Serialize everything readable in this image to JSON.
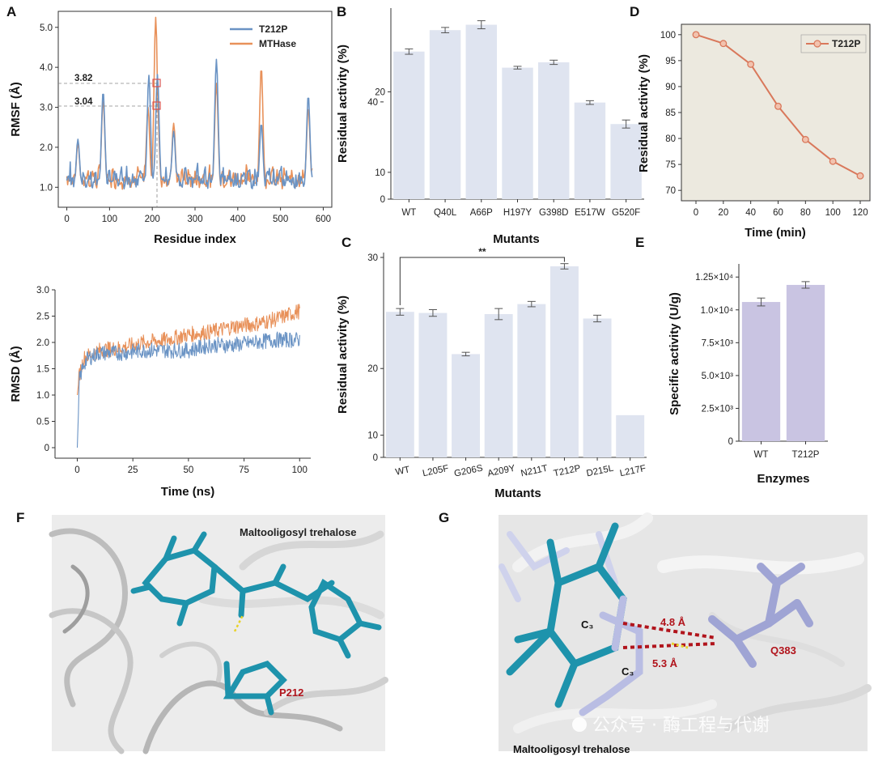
{
  "colors": {
    "t212p": "#6a93c4",
    "mthase": "#e8915a",
    "bar_blue": "#dfe4f0",
    "bar_purple": "#c9c4e2",
    "line_d": "#d9785b",
    "d_bg": "#ece9df",
    "cyan": "#1e93ac",
    "lavender": "#9fa4d4",
    "red_label": "#b1141c"
  },
  "panels": {
    "A": "A",
    "B": "B",
    "C": "C",
    "D": "D",
    "E": "E",
    "F": "F",
    "G": "G"
  },
  "chart_data": [
    {
      "id": "A_rmsf",
      "type": "line",
      "xlabel": "Residue index",
      "ylabel": "RMSF (Å)",
      "xlim": [
        -20,
        620
      ],
      "ylim": [
        0.5,
        5.4
      ],
      "xticks": [
        "0",
        "100",
        "200",
        "300",
        "400",
        "500",
        "600"
      ],
      "yticks": [
        "1.0",
        "2.0",
        "3.0",
        "4.0",
        "5.0"
      ],
      "legend": [
        "T212P",
        "MTHase"
      ],
      "annotations": [
        "3.82",
        "3.04"
      ],
      "marker_x": 212,
      "marker_values": [
        3.82,
        3.04
      ],
      "series": [
        {
          "name": "T212P",
          "peaks": [
            [
              26,
              2.2
            ],
            [
              85,
              3.4
            ],
            [
              192,
              3.8
            ],
            [
              212,
              3.82
            ],
            [
              250,
              2.4
            ],
            [
              350,
              4.2
            ],
            [
              455,
              2.6
            ],
            [
              565,
              3.3
            ]
          ]
        },
        {
          "name": "MTHase",
          "peaks": [
            [
              26,
              2.1
            ],
            [
              85,
              3.2
            ],
            [
              190,
              3.0
            ],
            [
              208,
              5.25
            ],
            [
              212,
              3.04
            ],
            [
              250,
              2.6
            ],
            [
              350,
              3.6
            ],
            [
              455,
              4.0
            ],
            [
              565,
              3.0
            ]
          ]
        }
      ]
    },
    {
      "id": "A_rmsd",
      "type": "line",
      "xlabel": "Time (ns)",
      "ylabel": "RMSD (Å)",
      "xlim": [
        -10,
        105
      ],
      "ylim": [
        -0.2,
        3.0
      ],
      "xticks": [
        "0",
        "25",
        "50",
        "75",
        "100"
      ],
      "yticks": [
        "0",
        "0.5",
        "1.0",
        "1.5",
        "2.0",
        "2.5",
        "3.0"
      ],
      "series": [
        {
          "name": "T212P",
          "x": [
            0,
            1,
            3,
            5,
            10,
            20,
            30,
            40,
            50,
            60,
            70,
            80,
            90,
            100
          ],
          "values": [
            0.0,
            1.3,
            1.6,
            1.7,
            1.8,
            1.8,
            1.85,
            1.85,
            1.85,
            1.95,
            1.95,
            2.0,
            2.05,
            2.05
          ]
        },
        {
          "name": "MTHase",
          "x": [
            0,
            1,
            3,
            5,
            10,
            20,
            30,
            40,
            50,
            60,
            70,
            80,
            90,
            100
          ],
          "values": [
            1.0,
            1.4,
            1.7,
            1.75,
            1.85,
            1.9,
            2.0,
            2.05,
            2.15,
            2.2,
            2.3,
            2.35,
            2.45,
            2.6
          ]
        }
      ]
    },
    {
      "id": "B",
      "type": "bar",
      "xlabel": "Mutants",
      "ylabel": "Residual activity (%)",
      "ylim": [
        0,
        70
      ],
      "yticks": [
        "0",
        "10",
        "20",
        "30",
        "40",
        "50",
        "60",
        "70"
      ],
      "categories": [
        "WT",
        "Q40L",
        "A66P",
        "H197Y",
        "G398D",
        "E517W",
        "G520F"
      ],
      "values": [
        55,
        63,
        65,
        49,
        51,
        36,
        28
      ],
      "errors": [
        1.0,
        1.0,
        1.5,
        0.5,
        0.8,
        0.7,
        1.5
      ]
    },
    {
      "id": "C",
      "type": "bar",
      "xlabel": "Mutants",
      "ylabel": "Residual activity (%)",
      "ylim": [
        0,
        90
      ],
      "yticks": [
        "0",
        "10",
        "20",
        "30",
        "40",
        "50",
        "60",
        "70",
        "80",
        "90"
      ],
      "categories": [
        "WT",
        "L205F",
        "G206S",
        "A209Y",
        "N211T",
        "T212P",
        "D215L",
        "L217F"
      ],
      "values": [
        65.5,
        65,
        46.5,
        64.5,
        69,
        86,
        62.5,
        19
      ],
      "errors": [
        1.5,
        1.5,
        0.8,
        2.5,
        1.2,
        1.2,
        1.5,
        0
      ],
      "significance": "**"
    },
    {
      "id": "D",
      "type": "line",
      "xlabel": "Time (min)",
      "ylabel": "Residual activity (%)",
      "ylim": [
        68,
        102
      ],
      "yticks": [
        "70",
        "75",
        "80",
        "85",
        "90",
        "95",
        "100"
      ],
      "xticks": [
        "0",
        "20",
        "40",
        "60",
        "80",
        "100",
        "120"
      ],
      "legend": [
        "T212P"
      ],
      "series": [
        {
          "name": "T212P",
          "x": [
            0,
            20,
            40,
            60,
            80,
            100,
            120
          ],
          "values": [
            100,
            98.3,
            94.3,
            86.2,
            79.8,
            75.6,
            72.8
          ]
        }
      ]
    },
    {
      "id": "E",
      "type": "bar",
      "xlabel": "Enzymes",
      "ylabel": "Specific activity (U/g)",
      "ylim": [
        0,
        13500
      ],
      "yticks": [
        "0",
        "2.5×10³",
        "5.0×10³",
        "7.5×10³",
        "1.0×10⁴",
        "1.25×10⁴"
      ],
      "categories": [
        "WT",
        "T212P"
      ],
      "values": [
        10600,
        11900
      ],
      "errors": [
        300,
        250
      ]
    }
  ],
  "molecular": {
    "F": {
      "ligand": "Maltooligosyl trehalose",
      "residue": "P212"
    },
    "G": {
      "ligand": "Maltooligosyl trehalose",
      "residue": "Q383",
      "atom1": "C₃",
      "atom2": "C₃",
      "dist1": "4.8 Å",
      "dist2": "5.3 Å"
    }
  },
  "watermark": "公众号 · 酶工程与代谢"
}
